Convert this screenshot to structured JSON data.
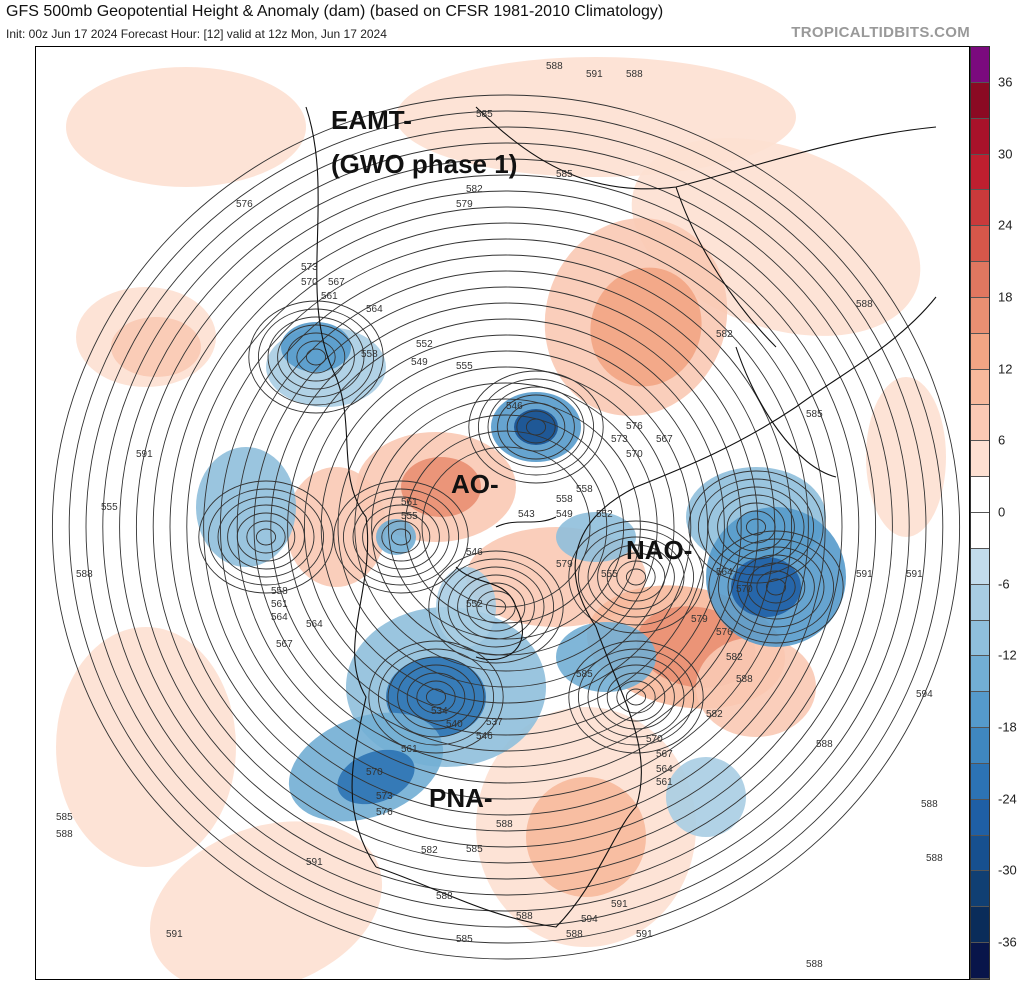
{
  "header": {
    "title": "GFS 500mb Geopotential Height & Anomaly (dam) (based on CFSR 1981-2010 Climatology)",
    "subtitle": "Init: 00z Jun 17 2024   Forecast Hour: [12]   valid at 12z Mon, Jun 17 2024",
    "brand": "TROPICALTIDBITS.COM"
  },
  "annotations": {
    "eamt": "EAMT-",
    "gwo": "(GWO phase 1)",
    "ao": "AO-",
    "nao": "NAO-",
    "pna": "PNA-"
  },
  "colorbar": {
    "ticks": [
      "36",
      "30",
      "24",
      "18",
      "12",
      "6",
      "0",
      "-6",
      "-12",
      "-18",
      "-24",
      "-30",
      "-36"
    ],
    "colors": [
      "#7b0a7e",
      "#8b0a23",
      "#a8122a",
      "#be1f2f",
      "#c93a3b",
      "#d6574a",
      "#e07760",
      "#e98f72",
      "#f2a584",
      "#f7b99c",
      "#fac9b4",
      "#fde0d2",
      "#ffffff",
      "#ffffff",
      "#c3dcec",
      "#a8cde3",
      "#8fbfdc",
      "#72aed4",
      "#559acb",
      "#3f87c0",
      "#2c73b4",
      "#1f5fa5",
      "#17508f",
      "#103f73",
      "#0a2c5a",
      "#08154a"
    ]
  },
  "contour_labels": [
    "585",
    "588",
    "591",
    "588",
    "576",
    "579",
    "582",
    "585",
    "573",
    "570",
    "567",
    "561",
    "564",
    "558",
    "552",
    "549",
    "555",
    "546",
    "543",
    "549",
    "558",
    "561",
    "555",
    "546",
    "552",
    "555",
    "558",
    "564",
    "570",
    "576",
    "582",
    "585",
    "579",
    "588",
    "591",
    "594",
    "591",
    "588",
    "555",
    "558",
    "561",
    "564",
    "567",
    "564",
    "552",
    "534",
    "540",
    "537",
    "546",
    "561",
    "570",
    "573",
    "576",
    "582",
    "585",
    "588",
    "588",
    "588",
    "591",
    "585",
    "588",
    "591",
    "588",
    "588",
    "588",
    "585",
    "588",
    "591",
    "588",
    "582",
    "579",
    "570",
    "567",
    "564",
    "561",
    "576",
    "573",
    "570",
    "567",
    "582",
    "585",
    "588",
    "591",
    "594",
    "591"
  ]
}
